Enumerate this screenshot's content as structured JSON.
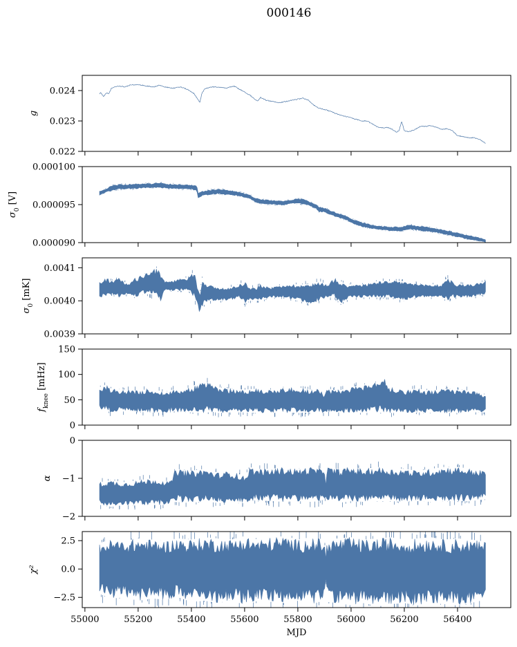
{
  "figure_title": "000146",
  "chart_data": [
    {
      "type": "line",
      "ylabel": "g",
      "ylim": [
        0.022,
        0.0245
      ],
      "yticks": [
        0.022,
        0.023,
        0.024
      ],
      "ytick_labels": [
        "0.022",
        "0.023",
        "0.024"
      ],
      "xlim": [
        54990,
        56600
      ],
      "show_x_tick_labels": false,
      "series": [
        {
          "render": "line",
          "x": [
            55055,
            55060,
            55070,
            55080,
            55090,
            55100,
            55110,
            55130,
            55150,
            55170,
            55200,
            55230,
            55260,
            55280,
            55300,
            55330,
            55360,
            55390,
            55410,
            55425,
            55432,
            55440,
            55450,
            55470,
            55500,
            55530,
            55560,
            55580,
            55600,
            55620,
            55640,
            55650,
            55660,
            55680,
            55700,
            55730,
            55760,
            55790,
            55820,
            55840,
            55860,
            55880,
            55900,
            55920,
            55950,
            55980,
            56000,
            56020,
            56040,
            56060,
            56080,
            56100,
            56120,
            56140,
            56160,
            56170,
            56180,
            56190,
            56200,
            56220,
            56240,
            56260,
            56280,
            56300,
            56320,
            56340,
            56360,
            56380,
            56400,
            56420,
            56440,
            56460,
            56480,
            56490,
            56500,
            56505
          ],
          "y": [
            0.0239,
            0.02393,
            0.0238,
            0.02392,
            0.0239,
            0.02408,
            0.02412,
            0.02415,
            0.02412,
            0.02418,
            0.0242,
            0.02415,
            0.02412,
            0.02418,
            0.02412,
            0.02408,
            0.02412,
            0.02402,
            0.0239,
            0.0237,
            0.02362,
            0.02392,
            0.02405,
            0.02412,
            0.02412,
            0.02408,
            0.02415,
            0.02405,
            0.02395,
            0.02385,
            0.0237,
            0.02365,
            0.02378,
            0.02368,
            0.02365,
            0.0236,
            0.02365,
            0.0237,
            0.02375,
            0.02368,
            0.02352,
            0.02342,
            0.02338,
            0.02332,
            0.02322,
            0.02315,
            0.0231,
            0.02305,
            0.023,
            0.023,
            0.0229,
            0.0228,
            0.02278,
            0.02278,
            0.0227,
            0.02262,
            0.02268,
            0.02298,
            0.02268,
            0.02265,
            0.02272,
            0.02282,
            0.02282,
            0.02285,
            0.0228,
            0.02272,
            0.02275,
            0.02268,
            0.02252,
            0.02248,
            0.02245,
            0.02245,
            0.0224,
            0.02235,
            0.0223,
            0.02225
          ]
        }
      ]
    },
    {
      "type": "area",
      "ylabel": "σ0 [V]",
      "ylim": [
        9e-05,
        0.0001
      ],
      "yticks": [
        9e-05,
        9.5e-05,
        0.0001
      ],
      "ytick_labels": [
        "0.000090",
        "0.000095",
        "0.000100"
      ],
      "xlim": [
        54990,
        56600
      ],
      "show_x_tick_labels": false,
      "series": [
        {
          "render": "band",
          "x": [
            55055,
            55070,
            55080,
            55100,
            55130,
            55160,
            55200,
            55250,
            55280,
            55300,
            55350,
            55400,
            55420,
            55425,
            55432,
            55440,
            55460,
            55500,
            55530,
            55560,
            55590,
            55620,
            55640,
            55660,
            55700,
            55740,
            55780,
            55800,
            55830,
            55850,
            55870,
            55880,
            55900,
            55920,
            55950,
            55980,
            56000,
            56030,
            56060,
            56100,
            56150,
            56190,
            56220,
            56250,
            56280,
            56300,
            56350,
            56400,
            56440,
            56480,
            56505
          ],
          "low": [
            9.62e-05,
            9.64e-05,
            9.66e-05,
            9.68e-05,
            9.7e-05,
            9.7e-05,
            9.71e-05,
            9.72e-05,
            9.72e-05,
            9.71e-05,
            9.7e-05,
            9.7e-05,
            9.68e-05,
            9.58e-05,
            9.58e-05,
            9.61e-05,
            9.62e-05,
            9.64e-05,
            9.62e-05,
            9.62e-05,
            9.6e-05,
            9.57e-05,
            9.53e-05,
            9.51e-05,
            9.5e-05,
            9.49e-05,
            9.51e-05,
            9.51e-05,
            9.5e-05,
            9.47e-05,
            9.44e-05,
            9.4e-05,
            9.4e-05,
            9.37e-05,
            9.33e-05,
            9.3e-05,
            9.26e-05,
            9.22e-05,
            9.19e-05,
            9.17e-05,
            9.15e-05,
            9.15e-05,
            9.17e-05,
            9.16e-05,
            9.14e-05,
            9.14e-05,
            9.11e-05,
            9.07e-05,
            9.04e-05,
            9.02e-05,
            9e-05
          ],
          "high": [
            9.68e-05,
            9.7e-05,
            9.71e-05,
            9.75e-05,
            9.77e-05,
            9.77e-05,
            9.78e-05,
            9.78e-05,
            9.79e-05,
            9.78e-05,
            9.77e-05,
            9.76e-05,
            9.75e-05,
            9.66e-05,
            9.67e-05,
            9.68e-05,
            9.69e-05,
            9.71e-05,
            9.7e-05,
            9.68e-05,
            9.66e-05,
            9.63e-05,
            9.59e-05,
            9.57e-05,
            9.56e-05,
            9.55e-05,
            9.57e-05,
            9.58e-05,
            9.57e-05,
            9.53e-05,
            9.5e-05,
            9.47e-05,
            9.46e-05,
            9.43e-05,
            9.39e-05,
            9.36e-05,
            9.32e-05,
            9.28e-05,
            9.25e-05,
            9.22e-05,
            9.21e-05,
            9.21e-05,
            9.24e-05,
            9.22e-05,
            9.21e-05,
            9.2e-05,
            9.17e-05,
            9.13e-05,
            9.1e-05,
            9.07e-05,
            9.04e-05
          ]
        }
      ]
    },
    {
      "type": "area",
      "ylabel": "σ0 [mK]",
      "ylim": [
        0.0039,
        0.00413
      ],
      "yticks": [
        0.0039,
        0.004,
        0.0041
      ],
      "ytick_labels": [
        "0.0039",
        "0.0040",
        "0.0041"
      ],
      "xlim": [
        54990,
        56600
      ],
      "show_x_tick_labels": false,
      "series": [
        {
          "render": "band",
          "x": [
            55055,
            55080,
            55100,
            55130,
            55160,
            55190,
            55220,
            55250,
            55270,
            55285,
            55300,
            55330,
            55360,
            55390,
            55410,
            55425,
            55432,
            55440,
            55460,
            55500,
            55540,
            55580,
            55600,
            55620,
            55640,
            55660,
            55700,
            55750,
            55800,
            55850,
            55880,
            55910,
            55940,
            55960,
            55980,
            56000,
            56050,
            56100,
            56150,
            56200,
            56250,
            56300,
            56340,
            56360,
            56380,
            56400,
            56450,
            56505
          ],
          "low": [
            0.00401,
            0.00401,
            0.00402,
            0.00401,
            0.00402,
            0.00401,
            0.00402,
            0.00402,
            0.00401,
            0.004,
            0.00403,
            0.00403,
            0.00403,
            0.00403,
            0.00401,
            0.00398,
            0.00396,
            0.00398,
            0.004,
            0.004,
            0.004,
            0.00401,
            0.00399,
            0.004,
            0.004,
            0.004,
            0.00401,
            0.00401,
            0.004,
            0.00399,
            0.004,
            0.00401,
            0.00401,
            0.00399,
            0.004,
            0.00401,
            0.00401,
            0.00401,
            0.00401,
            0.004,
            0.00401,
            0.00401,
            0.00401,
            0.004,
            0.00401,
            0.00401,
            0.00401,
            0.00402
          ],
          "high": [
            0.00406,
            0.00407,
            0.00406,
            0.00407,
            0.00405,
            0.00407,
            0.00408,
            0.00409,
            0.0041,
            0.00408,
            0.00406,
            0.00406,
            0.00407,
            0.00407,
            0.00409,
            0.00404,
            0.00402,
            0.00407,
            0.00405,
            0.00404,
            0.00404,
            0.00405,
            0.00406,
            0.00404,
            0.00404,
            0.00405,
            0.00404,
            0.00405,
            0.00405,
            0.00405,
            0.00406,
            0.00405,
            0.00407,
            0.00406,
            0.00405,
            0.00405,
            0.00405,
            0.00406,
            0.00406,
            0.00406,
            0.00405,
            0.00405,
            0.00405,
            0.00407,
            0.00406,
            0.00405,
            0.00405,
            0.00406
          ]
        }
      ]
    },
    {
      "type": "area",
      "ylabel": "fknee [mHz]",
      "ylim": [
        0,
        150
      ],
      "yticks": [
        0,
        50,
        100,
        150
      ],
      "ytick_labels": [
        "0",
        "50",
        "100",
        "150"
      ],
      "xlim": [
        54990,
        56600
      ],
      "show_x_tick_labels": false,
      "series": [
        {
          "render": "band",
          "x": [
            55055,
            55080,
            55100,
            55150,
            55200,
            55250,
            55300,
            55330,
            55350,
            55400,
            55440,
            55480,
            55500,
            55550,
            55600,
            55650,
            55700,
            55750,
            55800,
            55850,
            55880,
            55900,
            55905,
            55910,
            55950,
            56000,
            56050,
            56100,
            56120,
            56140,
            56200,
            56250,
            56300,
            56350,
            56400,
            56450,
            56505
          ],
          "low": [
            30,
            28,
            25,
            27,
            26,
            25,
            24,
            28,
            26,
            25,
            24,
            26,
            24,
            25,
            25,
            24,
            24,
            25,
            24,
            25,
            24,
            24,
            26,
            26,
            25,
            24,
            24,
            25,
            24,
            24,
            24,
            25,
            24,
            24,
            24,
            25,
            25
          ],
          "high": [
            75,
            80,
            72,
            70,
            68,
            72,
            65,
            70,
            70,
            75,
            88,
            80,
            75,
            72,
            70,
            72,
            70,
            75,
            75,
            70,
            72,
            60,
            70,
            72,
            68,
            75,
            80,
            85,
            100,
            75,
            70,
            72,
            68,
            72,
            70,
            68,
            60
          ]
        }
      ]
    },
    {
      "type": "area",
      "ylabel": "α",
      "ylim": [
        -2,
        0
      ],
      "yticks": [
        -2,
        -1,
        0
      ],
      "ytick_labels": [
        "−2",
        "−1",
        "0"
      ],
      "xlim": [
        54990,
        56600
      ],
      "show_x_tick_labels": false,
      "series": [
        {
          "render": "band",
          "x": [
            55055,
            55100,
            55150,
            55200,
            55250,
            55300,
            55320,
            55340,
            55400,
            55450,
            55500,
            55550,
            55600,
            55620,
            55640,
            55700,
            55750,
            55800,
            55850,
            55880,
            55900,
            55905,
            55910,
            55950,
            56000,
            56050,
            56100,
            56150,
            56200,
            56250,
            56300,
            56350,
            56400,
            56450,
            56505
          ],
          "low": [
            -1.7,
            -1.75,
            -1.7,
            -1.72,
            -1.7,
            -1.7,
            -1.65,
            -1.62,
            -1.65,
            -1.6,
            -1.65,
            -1.65,
            -1.65,
            -1.6,
            -1.58,
            -1.6,
            -1.62,
            -1.6,
            -1.62,
            -1.6,
            -1.55,
            -1.5,
            -1.6,
            -1.65,
            -1.6,
            -1.62,
            -1.6,
            -1.6,
            -1.62,
            -1.6,
            -1.62,
            -1.6,
            -1.6,
            -1.6,
            -1.55
          ],
          "high": [
            -1.1,
            -1.05,
            -1.1,
            -1.05,
            -1.0,
            -1.05,
            -1.1,
            -0.75,
            -0.8,
            -0.75,
            -0.85,
            -0.8,
            -0.95,
            -0.7,
            -0.75,
            -0.75,
            -0.7,
            -0.75,
            -0.7,
            -0.75,
            -0.7,
            -1.1,
            -0.7,
            -0.75,
            -0.7,
            -0.75,
            -0.7,
            -0.75,
            -0.75,
            -0.8,
            -0.75,
            -0.7,
            -0.7,
            -0.75,
            -0.8
          ]
        }
      ]
    },
    {
      "type": "area",
      "ylabel": "χ²",
      "ylim": [
        -3.4,
        3.3
      ],
      "yticks": [
        -2.5,
        0,
        2.5
      ],
      "ytick_labels": [
        "−2.5",
        "0.0",
        "2.5"
      ],
      "xlim": [
        54990,
        56600
      ],
      "xticks": [
        55000,
        55200,
        55400,
        55600,
        55800,
        56000,
        56200,
        56400
      ],
      "xtick_labels": [
        "55000",
        "55200",
        "55400",
        "55600",
        "55800",
        "56000",
        "56200",
        "56400"
      ],
      "xlabel": "MJD",
      "show_x_tick_labels": true,
      "series": [
        {
          "render": "band",
          "x": [
            55055,
            55100,
            55150,
            55200,
            55250,
            55300,
            55350,
            55400,
            55450,
            55500,
            55550,
            55600,
            55650,
            55700,
            55750,
            55800,
            55850,
            55880,
            55900,
            55905,
            55910,
            55950,
            56000,
            56050,
            56100,
            56150,
            56200,
            56250,
            56300,
            56350,
            56400,
            56450,
            56505
          ],
          "low": [
            -2.2,
            -2.6,
            -2.5,
            -2.8,
            -2.6,
            -2.7,
            -2.5,
            -2.9,
            -2.8,
            -3.0,
            -2.7,
            -3.2,
            -2.8,
            -2.9,
            -3.0,
            -2.8,
            -3.1,
            -2.9,
            -2.6,
            -0.8,
            -2.9,
            -3.0,
            -3.2,
            -3.0,
            -3.3,
            -3.1,
            -3.0,
            -3.2,
            -3.0,
            -3.1,
            -3.2,
            -3.0,
            -2.7
          ],
          "high": [
            2.3,
            2.6,
            2.5,
            2.7,
            2.6,
            2.5,
            2.7,
            2.6,
            2.8,
            2.7,
            2.6,
            2.9,
            2.6,
            2.8,
            2.9,
            2.6,
            2.8,
            2.7,
            2.5,
            1.0,
            2.6,
            2.7,
            2.8,
            2.6,
            2.7,
            2.8,
            2.6,
            2.7,
            2.8,
            2.6,
            2.7,
            2.6,
            2.4
          ]
        }
      ]
    }
  ]
}
